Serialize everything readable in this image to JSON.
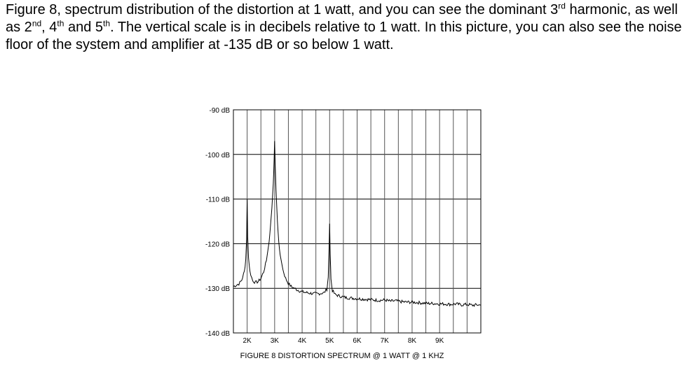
{
  "caption": {
    "t1": "Figure 8, spectrum distribution of the distortion at 1 watt, and you can see the dominant 3",
    "s1": "rd",
    "t2": " harmonic, as well as 2",
    "s2": "nd",
    "t3": ", 4",
    "s3": "th",
    "t4": " and 5",
    "s4": "th",
    "t5": ".  The vertical scale is in decibels relative to 1 watt.  In this picture, you can also see the noise floor of the system and amplifier at -135 dB or so below 1 watt."
  },
  "chart_data": {
    "type": "line",
    "title": "FIGURE 8  DISTORTION SPECTRUM @ 1 WATT @ 1 KHZ",
    "xlabel": "",
    "ylabel": "",
    "ylim": [
      -140,
      -90
    ],
    "xlim": [
      1500,
      10500
    ],
    "grid": true,
    "yticks": [
      {
        "value": -90,
        "label": "-90 dB"
      },
      {
        "value": -100,
        "label": "-100 dB"
      },
      {
        "value": -110,
        "label": "-110 dB"
      },
      {
        "value": -120,
        "label": "-120 dB"
      },
      {
        "value": -130,
        "label": "-130 dB"
      },
      {
        "value": -140,
        "label": "-140 dB"
      }
    ],
    "xticks": [
      {
        "value": 2000,
        "label": "2K"
      },
      {
        "value": 3000,
        "label": "3K"
      },
      {
        "value": 4000,
        "label": "4K"
      },
      {
        "value": 5000,
        "label": "5K"
      },
      {
        "value": 6000,
        "label": "6K"
      },
      {
        "value": 7000,
        "label": "7K"
      },
      {
        "value": 8000,
        "label": "8K"
      },
      {
        "value": 9000,
        "label": "9K"
      }
    ],
    "series": [
      {
        "x": [
          1500,
          1600,
          1700,
          1800,
          1900,
          1950,
          1980,
          2000,
          2020,
          2050,
          2100,
          2200,
          2300,
          2400,
          2500,
          2600,
          2700,
          2800,
          2850,
          2900,
          2950,
          2980,
          3000,
          3020,
          3050,
          3100,
          3150,
          3200,
          3300,
          3400,
          3500,
          3600,
          3800,
          4000,
          4200,
          4400,
          4600,
          4800,
          4900,
          4950,
          4980,
          5000,
          5020,
          5050,
          5100,
          5200,
          5400,
          5600,
          5800,
          6000,
          6200,
          6400,
          6600,
          6800,
          7000,
          7200,
          7400,
          7600,
          7800,
          8000,
          8200,
          8400,
          8600,
          8800,
          9000,
          9200,
          9400,
          9600,
          9800,
          10000,
          10200,
          10400,
          10500
        ],
        "y": [
          -129.6,
          -129.3,
          -129.0,
          -128.2,
          -126.2,
          -123.5,
          -119.0,
          -110.0,
          -118.5,
          -123.2,
          -126.2,
          -128.3,
          -128.7,
          -128.5,
          -127.8,
          -126.3,
          -123.8,
          -119.5,
          -116.0,
          -112.0,
          -106.5,
          -101.5,
          -97.0,
          -102.0,
          -108.0,
          -115.0,
          -119.5,
          -122.5,
          -125.8,
          -127.8,
          -128.9,
          -129.6,
          -130.3,
          -130.8,
          -131.0,
          -131.2,
          -131.2,
          -131.0,
          -130.2,
          -127.5,
          -121.0,
          -115.5,
          -122.5,
          -128.0,
          -130.5,
          -131.4,
          -131.8,
          -132.1,
          -132.2,
          -132.3,
          -132.4,
          -132.5,
          -132.6,
          -132.7,
          -132.6,
          -132.9,
          -132.8,
          -133.0,
          -133.1,
          -133.1,
          -133.2,
          -133.3,
          -133.4,
          -133.4,
          -133.5,
          -133.5,
          -133.6,
          -133.5,
          -133.7,
          -133.6,
          -133.8,
          -133.7,
          -133.8
        ]
      }
    ]
  }
}
